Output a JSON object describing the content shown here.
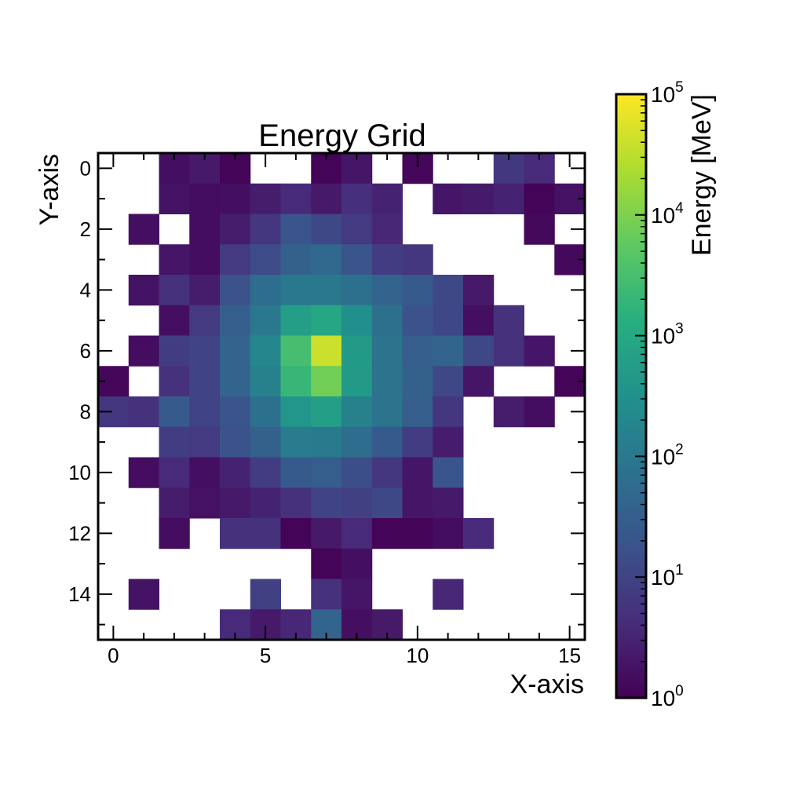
{
  "chart_data": {
    "type": "heatmap",
    "title": "Energy Grid",
    "xlabel": "X-axis",
    "ylabel": "Y-axis",
    "xlim": [
      -0.5,
      15.5
    ],
    "ylim": [
      -0.5,
      15.5
    ],
    "y_inverted": true,
    "x_ticks": [
      "0",
      "5",
      "10",
      "15"
    ],
    "y_ticks": [
      "0",
      "2",
      "4",
      "6",
      "8",
      "10",
      "12",
      "14"
    ],
    "grid": false,
    "colormap": "viridis",
    "color_scale": "log",
    "colorbar": {
      "label": "Energy [MeV]",
      "range": [
        1,
        100000
      ],
      "ticks": [
        {
          "base": "10",
          "exp": "0"
        },
        {
          "base": "10",
          "exp": "1"
        },
        {
          "base": "10",
          "exp": "2"
        },
        {
          "base": "10",
          "exp": "3"
        },
        {
          "base": "10",
          "exp": "4"
        },
        {
          "base": "10",
          "exp": "5"
        }
      ]
    },
    "cells": [
      {
        "x": 2,
        "y": 0,
        "v": 1.6
      },
      {
        "x": 3,
        "y": 0,
        "v": 2.2
      },
      {
        "x": 4,
        "y": 0,
        "v": 1.1
      },
      {
        "x": 7,
        "y": 0,
        "v": 1.1
      },
      {
        "x": 8,
        "y": 0,
        "v": 2.0
      },
      {
        "x": 10,
        "y": 0,
        "v": 1.2
      },
      {
        "x": 13,
        "y": 0,
        "v": 6.5
      },
      {
        "x": 14,
        "y": 0,
        "v": 4.0
      },
      {
        "x": 2,
        "y": 1,
        "v": 1.8
      },
      {
        "x": 3,
        "y": 1,
        "v": 1.5
      },
      {
        "x": 4,
        "y": 1,
        "v": 1.6
      },
      {
        "x": 5,
        "y": 1,
        "v": 2.5
      },
      {
        "x": 6,
        "y": 1,
        "v": 4.0
      },
      {
        "x": 7,
        "y": 1,
        "v": 2.2
      },
      {
        "x": 8,
        "y": 1,
        "v": 4.5
      },
      {
        "x": 9,
        "y": 1,
        "v": 3.0
      },
      {
        "x": 11,
        "y": 1,
        "v": 2.0
      },
      {
        "x": 12,
        "y": 1,
        "v": 2.3
      },
      {
        "x": 13,
        "y": 1,
        "v": 3.0
      },
      {
        "x": 14,
        "y": 1,
        "v": 1.1
      },
      {
        "x": 15,
        "y": 1,
        "v": 1.7
      },
      {
        "x": 1,
        "y": 2,
        "v": 1.6
      },
      {
        "x": 3,
        "y": 2,
        "v": 1.5
      },
      {
        "x": 4,
        "y": 2,
        "v": 2.5
      },
      {
        "x": 5,
        "y": 2,
        "v": 6.0
      },
      {
        "x": 6,
        "y": 2,
        "v": 20
      },
      {
        "x": 7,
        "y": 2,
        "v": 12
      },
      {
        "x": 8,
        "y": 2,
        "v": 7.0
      },
      {
        "x": 9,
        "y": 2,
        "v": 3.5
      },
      {
        "x": 14,
        "y": 2,
        "v": 1.3
      },
      {
        "x": 2,
        "y": 3,
        "v": 2.0
      },
      {
        "x": 3,
        "y": 3,
        "v": 1.5
      },
      {
        "x": 4,
        "y": 3,
        "v": 7.0
      },
      {
        "x": 5,
        "y": 3,
        "v": 14
      },
      {
        "x": 6,
        "y": 3,
        "v": 35
      },
      {
        "x": 7,
        "y": 3,
        "v": 50
      },
      {
        "x": 8,
        "y": 3,
        "v": 20
      },
      {
        "x": 9,
        "y": 3,
        "v": 8.0
      },
      {
        "x": 10,
        "y": 3,
        "v": 6.0
      },
      {
        "x": 15,
        "y": 3,
        "v": 1.3
      },
      {
        "x": 1,
        "y": 4,
        "v": 1.8
      },
      {
        "x": 2,
        "y": 4,
        "v": 5.0
      },
      {
        "x": 3,
        "y": 4,
        "v": 2.5
      },
      {
        "x": 4,
        "y": 4,
        "v": 18
      },
      {
        "x": 5,
        "y": 4,
        "v": 60
      },
      {
        "x": 6,
        "y": 4,
        "v": 100
      },
      {
        "x": 7,
        "y": 4,
        "v": 100
      },
      {
        "x": 8,
        "y": 4,
        "v": 70
      },
      {
        "x": 9,
        "y": 4,
        "v": 40
      },
      {
        "x": 10,
        "y": 4,
        "v": 25
      },
      {
        "x": 11,
        "y": 4,
        "v": 12
      },
      {
        "x": 12,
        "y": 4,
        "v": 2.2
      },
      {
        "x": 2,
        "y": 5,
        "v": 1.6
      },
      {
        "x": 3,
        "y": 5,
        "v": 7.0
      },
      {
        "x": 4,
        "y": 5,
        "v": 30
      },
      {
        "x": 5,
        "y": 5,
        "v": 100
      },
      {
        "x": 6,
        "y": 5,
        "v": 600
      },
      {
        "x": 7,
        "y": 5,
        "v": 900
      },
      {
        "x": 8,
        "y": 5,
        "v": 300
      },
      {
        "x": 9,
        "y": 5,
        "v": 70
      },
      {
        "x": 10,
        "y": 5,
        "v": 18
      },
      {
        "x": 11,
        "y": 5,
        "v": 12
      },
      {
        "x": 12,
        "y": 5,
        "v": 1.6
      },
      {
        "x": 13,
        "y": 5,
        "v": 5.0
      },
      {
        "x": 1,
        "y": 6,
        "v": 1.5
      },
      {
        "x": 2,
        "y": 6,
        "v": 8.0
      },
      {
        "x": 3,
        "y": 6,
        "v": 10
      },
      {
        "x": 4,
        "y": 6,
        "v": 40
      },
      {
        "x": 5,
        "y": 6,
        "v": 200
      },
      {
        "x": 6,
        "y": 6,
        "v": 3000
      },
      {
        "x": 7,
        "y": 6,
        "v": 40000
      },
      {
        "x": 8,
        "y": 6,
        "v": 500
      },
      {
        "x": 9,
        "y": 6,
        "v": 80
      },
      {
        "x": 10,
        "y": 6,
        "v": 30
      },
      {
        "x": 11,
        "y": 6,
        "v": 40
      },
      {
        "x": 12,
        "y": 6,
        "v": 12
      },
      {
        "x": 13,
        "y": 6,
        "v": 5.0
      },
      {
        "x": 14,
        "y": 6,
        "v": 2.0
      },
      {
        "x": 0,
        "y": 7,
        "v": 1.2
      },
      {
        "x": 2,
        "y": 7,
        "v": 5.0
      },
      {
        "x": 3,
        "y": 7,
        "v": 10
      },
      {
        "x": 4,
        "y": 7,
        "v": 40
      },
      {
        "x": 5,
        "y": 7,
        "v": 150
      },
      {
        "x": 6,
        "y": 7,
        "v": 2000
      },
      {
        "x": 7,
        "y": 7,
        "v": 8000
      },
      {
        "x": 8,
        "y": 7,
        "v": 500
      },
      {
        "x": 9,
        "y": 7,
        "v": 80
      },
      {
        "x": 10,
        "y": 7,
        "v": 35
      },
      {
        "x": 11,
        "y": 7,
        "v": 12
      },
      {
        "x": 12,
        "y": 7,
        "v": 2.0
      },
      {
        "x": 15,
        "y": 7,
        "v": 1.1
      },
      {
        "x": 0,
        "y": 8,
        "v": 6.0
      },
      {
        "x": 1,
        "y": 8,
        "v": 5.0
      },
      {
        "x": 2,
        "y": 8,
        "v": 25
      },
      {
        "x": 3,
        "y": 8,
        "v": 10
      },
      {
        "x": 4,
        "y": 8,
        "v": 20
      },
      {
        "x": 5,
        "y": 8,
        "v": 70
      },
      {
        "x": 6,
        "y": 8,
        "v": 400
      },
      {
        "x": 7,
        "y": 8,
        "v": 600
      },
      {
        "x": 8,
        "y": 8,
        "v": 150
      },
      {
        "x": 9,
        "y": 8,
        "v": 80
      },
      {
        "x": 10,
        "y": 8,
        "v": 30
      },
      {
        "x": 11,
        "y": 8,
        "v": 6.0
      },
      {
        "x": 13,
        "y": 8,
        "v": 2.5
      },
      {
        "x": 14,
        "y": 8,
        "v": 1.5
      },
      {
        "x": 2,
        "y": 9,
        "v": 8.0
      },
      {
        "x": 3,
        "y": 9,
        "v": 7.0
      },
      {
        "x": 4,
        "y": 9,
        "v": 18
      },
      {
        "x": 5,
        "y": 9,
        "v": 35
      },
      {
        "x": 6,
        "y": 9,
        "v": 120
      },
      {
        "x": 7,
        "y": 9,
        "v": 110
      },
      {
        "x": 8,
        "y": 9,
        "v": 60
      },
      {
        "x": 9,
        "y": 9,
        "v": 25
      },
      {
        "x": 10,
        "y": 9,
        "v": 8.0
      },
      {
        "x": 11,
        "y": 9,
        "v": 2.5
      },
      {
        "x": 1,
        "y": 10,
        "v": 1.5
      },
      {
        "x": 2,
        "y": 10,
        "v": 4.0
      },
      {
        "x": 3,
        "y": 10,
        "v": 1.6
      },
      {
        "x": 4,
        "y": 10,
        "v": 3.0
      },
      {
        "x": 5,
        "y": 10,
        "v": 8.0
      },
      {
        "x": 6,
        "y": 10,
        "v": 25
      },
      {
        "x": 7,
        "y": 10,
        "v": 30
      },
      {
        "x": 8,
        "y": 10,
        "v": 15
      },
      {
        "x": 9,
        "y": 10,
        "v": 6.0
      },
      {
        "x": 10,
        "y": 10,
        "v": 2.0
      },
      {
        "x": 11,
        "y": 10,
        "v": 20
      },
      {
        "x": 2,
        "y": 11,
        "v": 2.5
      },
      {
        "x": 3,
        "y": 11,
        "v": 1.7
      },
      {
        "x": 4,
        "y": 11,
        "v": 2.2
      },
      {
        "x": 5,
        "y": 11,
        "v": 3.0
      },
      {
        "x": 6,
        "y": 11,
        "v": 5.0
      },
      {
        "x": 7,
        "y": 11,
        "v": 10
      },
      {
        "x": 8,
        "y": 11,
        "v": 9.0
      },
      {
        "x": 9,
        "y": 11,
        "v": 12
      },
      {
        "x": 10,
        "y": 11,
        "v": 2.0
      },
      {
        "x": 11,
        "y": 11,
        "v": 2.2
      },
      {
        "x": 2,
        "y": 12,
        "v": 1.5
      },
      {
        "x": 4,
        "y": 12,
        "v": 5.0
      },
      {
        "x": 5,
        "y": 12,
        "v": 5.0
      },
      {
        "x": 6,
        "y": 12,
        "v": 1.1
      },
      {
        "x": 7,
        "y": 12,
        "v": 2.2
      },
      {
        "x": 8,
        "y": 12,
        "v": 4.0
      },
      {
        "x": 9,
        "y": 12,
        "v": 1.1
      },
      {
        "x": 10,
        "y": 12,
        "v": 1.1
      },
      {
        "x": 11,
        "y": 12,
        "v": 1.5
      },
      {
        "x": 12,
        "y": 12,
        "v": 4.0
      },
      {
        "x": 7,
        "y": 13,
        "v": 1.1
      },
      {
        "x": 8,
        "y": 13,
        "v": 1.6
      },
      {
        "x": 1,
        "y": 14,
        "v": 1.8
      },
      {
        "x": 5,
        "y": 14,
        "v": 9.0
      },
      {
        "x": 7,
        "y": 14,
        "v": 5.0
      },
      {
        "x": 8,
        "y": 14,
        "v": 2.0
      },
      {
        "x": 11,
        "y": 14,
        "v": 3.5
      },
      {
        "x": 4,
        "y": 15,
        "v": 4.0
      },
      {
        "x": 5,
        "y": 15,
        "v": 2.2
      },
      {
        "x": 6,
        "y": 15,
        "v": 3.5
      },
      {
        "x": 7,
        "y": 15,
        "v": 40
      },
      {
        "x": 8,
        "y": 15,
        "v": 1.6
      },
      {
        "x": 9,
        "y": 15,
        "v": 2.2
      }
    ]
  }
}
